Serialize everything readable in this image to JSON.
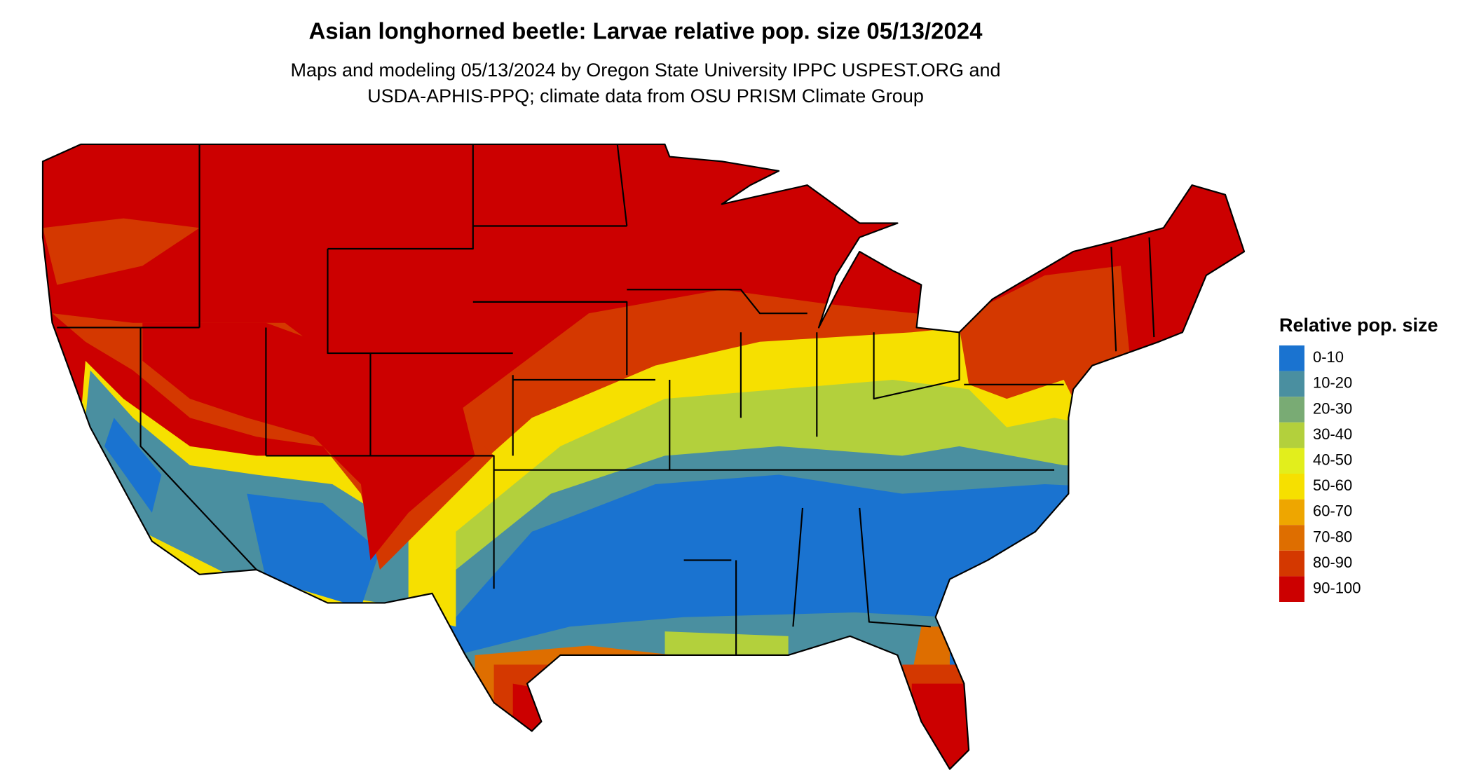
{
  "header": {
    "title": "Asian longhorned beetle: Larvae relative pop. size 05/13/2024",
    "subtitle": [
      "Maps and modeling 05/13/2024 by Oregon State University IPPC USPEST.ORG and",
      "USDA-APHIS-PPQ; climate data from OSU PRISM Climate Group"
    ]
  },
  "legend": {
    "title": "Relative pop. size",
    "items": [
      {
        "label": "0-10",
        "color": "#1a73d0"
      },
      {
        "label": "10-20",
        "color": "#4a8fa0"
      },
      {
        "label": "20-30",
        "color": "#79ab74"
      },
      {
        "label": "30-40",
        "color": "#b3d03c"
      },
      {
        "label": "40-50",
        "color": "#e2ee1c"
      },
      {
        "label": "50-60",
        "color": "#f6e000"
      },
      {
        "label": "60-70",
        "color": "#eea600"
      },
      {
        "label": "70-80",
        "color": "#de6e00"
      },
      {
        "label": "80-90",
        "color": "#d43800"
      },
      {
        "label": "90-100",
        "color": "#cc0000"
      }
    ]
  }
}
